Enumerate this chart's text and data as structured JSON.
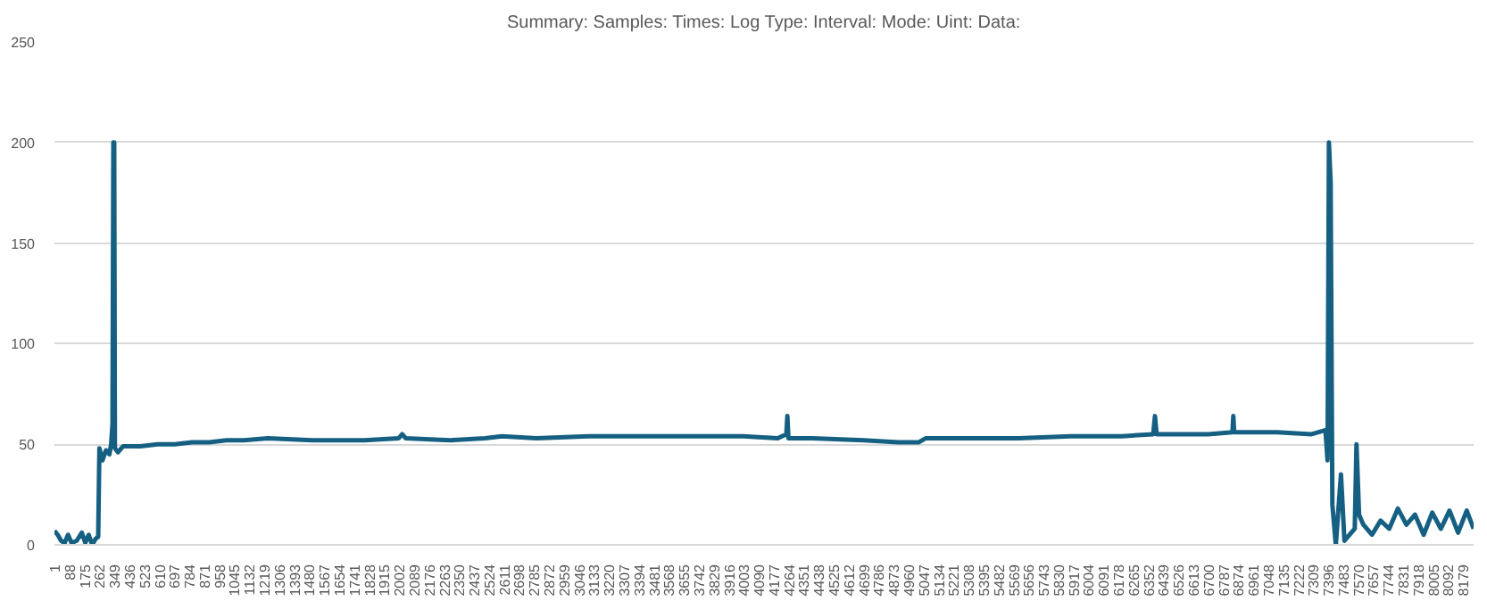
{
  "chart_data": {
    "type": "line",
    "title": "Summary: Samples: Times: Log Type: Interval: Mode: Uint: Data:",
    "x": [
      1,
      20,
      40,
      60,
      80,
      100,
      130,
      160,
      180,
      200,
      220,
      240,
      255,
      262,
      280,
      300,
      320,
      330,
      338,
      343,
      348,
      352,
      370,
      400,
      500,
      600,
      700,
      800,
      900,
      1000,
      1100,
      1240,
      1500,
      1800,
      2000,
      2020,
      2040,
      2300,
      2500,
      2600,
      2800,
      3100,
      3400,
      3700,
      4000,
      4200,
      4250,
      4256,
      4262,
      4400,
      4700,
      4900,
      5020,
      5060,
      5300,
      5600,
      5900,
      6200,
      6380,
      6390,
      6400,
      6700,
      6840,
      6845,
      6850,
      7100,
      7300,
      7380,
      7392,
      7400,
      7410,
      7420,
      7440,
      7470,
      7490,
      7520,
      7550,
      7560,
      7575,
      7600,
      7650,
      7700,
      7750,
      7800,
      7850,
      7900,
      7950,
      8000,
      8050,
      8100,
      8150,
      8200,
      8240
    ],
    "series": [
      {
        "color": "#156082",
        "values": [
          7,
          5,
          2,
          1,
          5,
          1,
          2,
          6,
          1,
          5,
          0,
          3,
          4,
          48,
          42,
          47,
          45,
          50,
          60,
          200,
          200,
          48,
          46,
          49,
          49,
          50,
          50,
          51,
          51,
          52,
          52,
          53,
          52,
          52,
          53,
          55,
          53,
          52,
          53,
          54,
          53,
          54,
          54,
          54,
          54,
          53,
          55,
          64,
          53,
          53,
          52,
          51,
          51,
          53,
          53,
          53,
          54,
          54,
          55,
          64,
          55,
          55,
          56,
          64,
          56,
          56,
          55,
          57,
          42,
          200,
          180,
          20,
          0,
          35,
          2,
          5,
          8,
          50,
          15,
          10,
          5,
          12,
          8,
          18,
          10,
          15,
          5,
          16,
          8,
          17,
          6,
          17,
          8
        ]
      }
    ],
    "xlim": [
      1,
      8240
    ],
    "ylim": [
      0,
      250
    ],
    "yticks": [
      0,
      50,
      100,
      150,
      200,
      250
    ],
    "xticks": [
      1,
      88,
      175,
      262,
      349,
      436,
      523,
      610,
      697,
      784,
      871,
      958,
      1045,
      1132,
      1219,
      1306,
      1393,
      1480,
      1567,
      1654,
      1741,
      1828,
      1915,
      2002,
      2089,
      2176,
      2263,
      2350,
      2437,
      2524,
      2611,
      2698,
      2785,
      2872,
      2959,
      3046,
      3133,
      3220,
      3307,
      3394,
      3481,
      3568,
      3655,
      3742,
      3829,
      3916,
      4003,
      4090,
      4177,
      4264,
      4351,
      4438,
      4525,
      4612,
      4699,
      4786,
      4873,
      4960,
      5047,
      5134,
      5221,
      5308,
      5395,
      5482,
      5569,
      5656,
      5743,
      5830,
      5917,
      6004,
      6091,
      6178,
      6265,
      6352,
      6439,
      6526,
      6613,
      6700,
      6787,
      6874,
      6961,
      7048,
      7135,
      7222,
      7309,
      7396,
      7483,
      7570,
      7657,
      7744,
      7831,
      7918,
      8005,
      8092,
      8179
    ],
    "grid": "y",
    "marker": "none",
    "line_style": "solid"
  }
}
